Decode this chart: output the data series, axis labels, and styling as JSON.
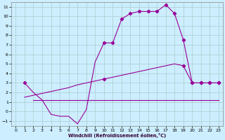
{
  "xlabel": "Windchill (Refroidissement éolien,°C)",
  "background_color": "#cceeff",
  "grid_color": "#aacccc",
  "line_color": "#990099",
  "xlim": [
    -0.5,
    23.5
  ],
  "ylim": [
    -1.5,
    11.5
  ],
  "xticks": [
    0,
    1,
    2,
    3,
    4,
    5,
    6,
    7,
    8,
    9,
    10,
    11,
    12,
    13,
    14,
    15,
    16,
    17,
    18,
    19,
    20,
    21,
    22,
    23
  ],
  "yticks": [
    -1,
    0,
    1,
    2,
    3,
    4,
    5,
    6,
    7,
    8,
    9,
    10,
    11
  ],
  "line1_x": [
    1,
    2,
    3,
    4,
    5,
    6,
    7,
    8,
    9,
    10,
    11,
    12,
    13,
    14,
    15,
    16,
    17,
    18,
    19,
    20,
    21,
    22,
    23
  ],
  "line1_y": [
    3.0,
    2.0,
    1.2,
    -0.3,
    -0.5,
    -0.5,
    -1.3,
    0.2,
    5.2,
    7.2,
    7.2,
    9.7,
    10.3,
    10.5,
    10.5,
    10.5,
    11.2,
    10.3,
    7.5,
    3.0,
    3.0,
    3.0,
    3.0
  ],
  "line1_markevery": [
    0,
    9,
    10,
    11,
    12,
    13,
    14,
    15,
    16,
    17,
    18,
    19,
    20,
    21,
    22
  ],
  "line2_x": [
    1,
    2,
    3,
    4,
    5,
    6,
    7,
    8,
    9,
    10,
    11,
    12,
    13,
    14,
    15,
    16,
    17,
    18,
    19,
    20,
    21,
    22,
    23
  ],
  "line2_y": [
    1.5,
    1.7,
    1.9,
    2.1,
    2.3,
    2.5,
    2.8,
    3.0,
    3.2,
    3.4,
    3.6,
    3.8,
    4.0,
    4.2,
    4.4,
    4.6,
    4.8,
    5.0,
    4.8,
    3.0,
    3.0,
    3.0,
    3.0
  ],
  "line2_markevery": [
    9,
    18,
    19,
    20,
    21,
    22
  ],
  "line3_x": [
    2,
    3,
    4,
    5,
    6,
    7,
    8,
    9,
    10,
    11,
    12,
    13,
    14,
    23
  ],
  "line3_y": [
    1.2,
    1.2,
    1.2,
    1.2,
    1.2,
    1.2,
    1.2,
    1.2,
    1.2,
    1.2,
    1.2,
    1.2,
    1.2,
    1.2
  ],
  "figsize": [
    3.2,
    2.0
  ],
  "dpi": 100
}
